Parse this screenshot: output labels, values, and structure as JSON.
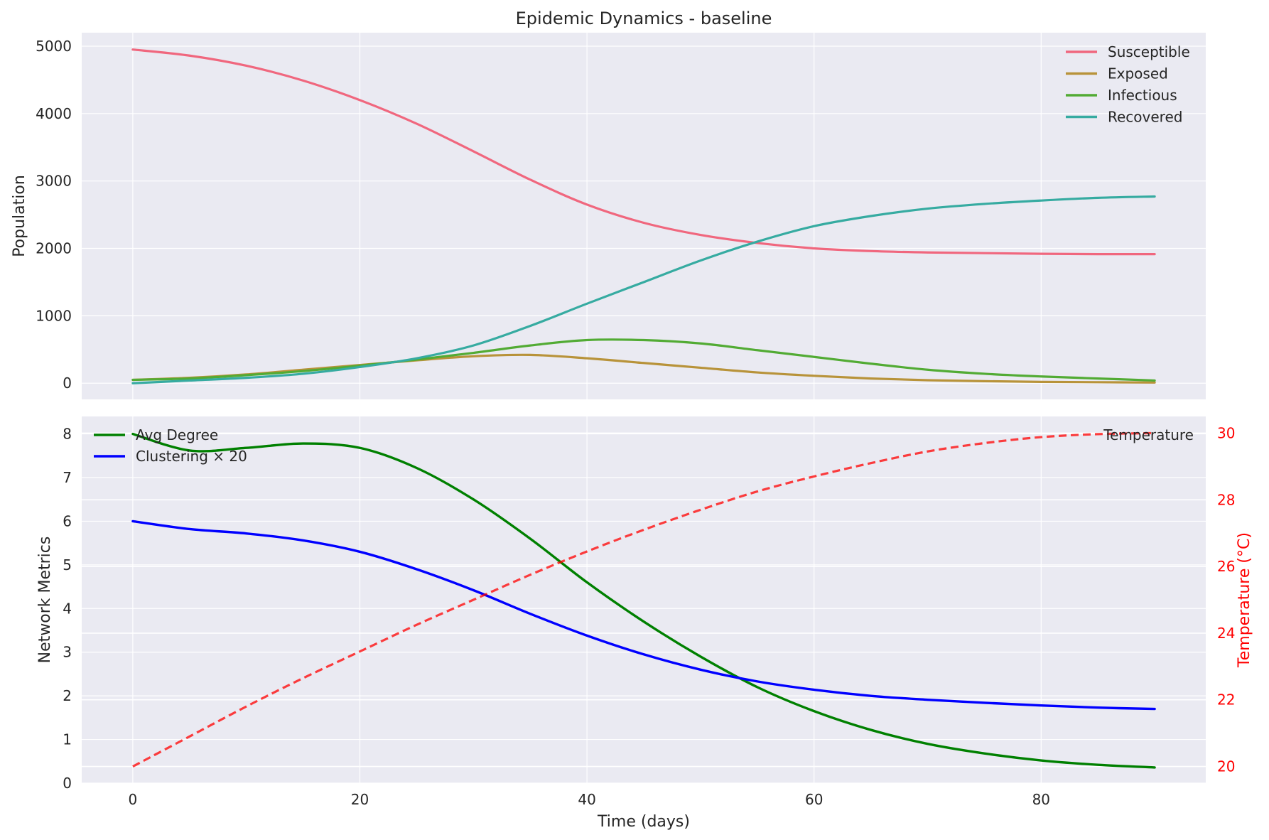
{
  "title": "Epidemic Dynamics - baseline",
  "colors": {
    "susceptible": "#f0677e",
    "exposed": "#b8933a",
    "infectious": "#52ab34",
    "recovered": "#36aba1",
    "avg_degree": "#008000",
    "clustering": "#0000ff",
    "temperature": "#ff0000",
    "axes_bg": "#eaeaf2",
    "grid": "#ffffff"
  },
  "chart_data": [
    {
      "type": "line",
      "title": "Epidemic Dynamics - baseline",
      "xlabel": "",
      "ylabel": "Population",
      "xlim": [
        -4.5,
        94.5
      ],
      "ylim": [
        -240,
        5200
      ],
      "xticks": [
        0,
        20,
        40,
        60,
        80
      ],
      "yticks": [
        0,
        1000,
        2000,
        3000,
        4000,
        5000
      ],
      "grid": true,
      "legend_position": "top-right",
      "x": [
        0,
        5,
        10,
        15,
        20,
        25,
        30,
        35,
        40,
        45,
        50,
        55,
        60,
        65,
        70,
        75,
        80,
        85,
        90
      ],
      "series": [
        {
          "name": "Susceptible",
          "values": [
            4950,
            4860,
            4710,
            4490,
            4200,
            3850,
            3440,
            3020,
            2650,
            2380,
            2200,
            2080,
            2000,
            1960,
            1940,
            1930,
            1920,
            1915,
            1915
          ]
        },
        {
          "name": "Exposed",
          "values": [
            50,
            80,
            130,
            200,
            270,
            340,
            400,
            420,
            370,
            300,
            230,
            160,
            110,
            70,
            45,
            30,
            20,
            15,
            10
          ]
        },
        {
          "name": "Infectious",
          "values": [
            50,
            70,
            120,
            180,
            260,
            350,
            450,
            560,
            640,
            640,
            590,
            490,
            390,
            290,
            200,
            140,
            100,
            70,
            40
          ]
        },
        {
          "name": "Recovered",
          "values": [
            0,
            40,
            80,
            140,
            240,
            370,
            560,
            850,
            1180,
            1500,
            1820,
            2100,
            2330,
            2480,
            2590,
            2660,
            2710,
            2750,
            2770
          ]
        }
      ]
    },
    {
      "type": "line",
      "xlabel": "Time (days)",
      "ylabel": "Network Metrics",
      "y2label": "Temperature (°C)",
      "xlim": [
        -4.5,
        94.5
      ],
      "ylim": [
        0,
        8.4
      ],
      "y2lim": [
        19.5,
        30.5
      ],
      "xticks": [
        0,
        20,
        40,
        60,
        80
      ],
      "yticks": [
        0,
        1,
        2,
        3,
        4,
        5,
        6,
        7,
        8
      ],
      "y2ticks": [
        20,
        22,
        24,
        26,
        28,
        30
      ],
      "grid": true,
      "legend_position": "top-left",
      "legend2_position": "top-right",
      "x": [
        0,
        5,
        10,
        15,
        20,
        25,
        30,
        35,
        40,
        45,
        50,
        55,
        60,
        65,
        70,
        75,
        80,
        85,
        90
      ],
      "series": [
        {
          "name": "Avg Degree",
          "axis": "left",
          "values": [
            8.0,
            7.62,
            7.68,
            7.78,
            7.68,
            7.22,
            6.5,
            5.6,
            4.6,
            3.7,
            2.9,
            2.2,
            1.65,
            1.22,
            0.9,
            0.68,
            0.52,
            0.42,
            0.36
          ]
        },
        {
          "name": "Clustering × 20",
          "axis": "left",
          "values": [
            6.0,
            5.82,
            5.72,
            5.56,
            5.3,
            4.9,
            4.42,
            3.88,
            3.38,
            2.95,
            2.6,
            2.33,
            2.14,
            2.0,
            1.91,
            1.84,
            1.78,
            1.73,
            1.7
          ]
        },
        {
          "name": "Temperature",
          "axis": "right",
          "style": "dashed",
          "values": [
            20.0,
            20.9,
            21.8,
            22.65,
            23.45,
            24.25,
            25.0,
            25.75,
            26.45,
            27.1,
            27.7,
            28.25,
            28.7,
            29.1,
            29.45,
            29.7,
            29.88,
            29.97,
            30.0
          ]
        }
      ]
    }
  ]
}
